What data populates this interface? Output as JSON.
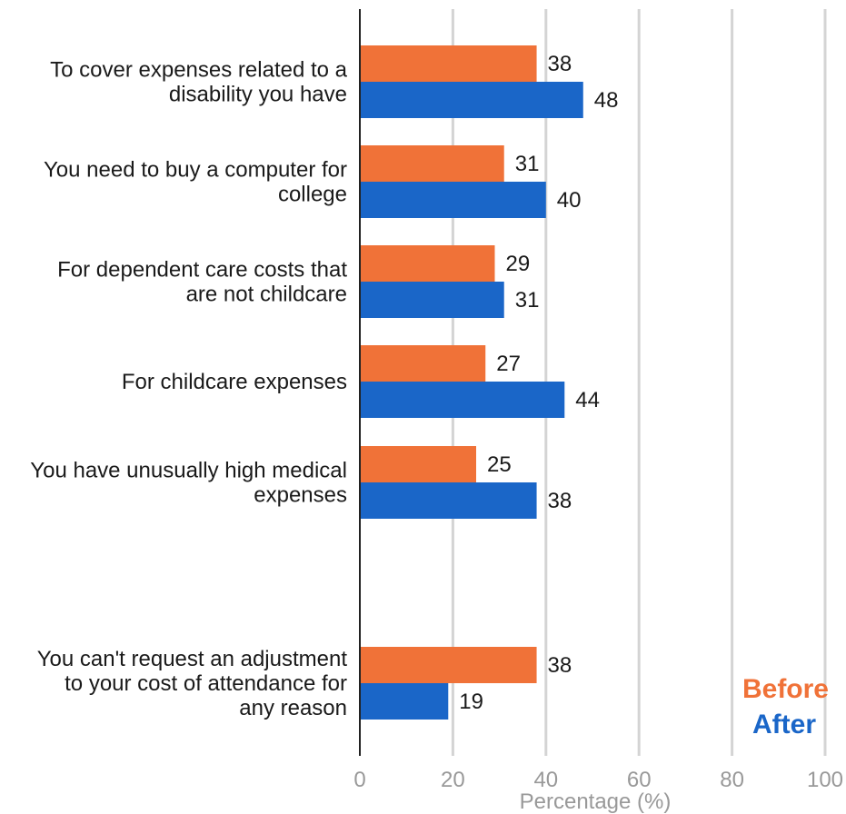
{
  "chart_data": {
    "type": "bar",
    "orientation": "horizontal",
    "xlabel": "Percentage (%)",
    "xlim": [
      0,
      100
    ],
    "xticks": [
      0,
      20,
      40,
      60,
      80,
      100
    ],
    "grid": true,
    "legend_position": "bottom-right",
    "categories": [
      [
        "To cover expenses related to a",
        "disability you have"
      ],
      [
        "You need to buy a computer for",
        "college"
      ],
      [
        "For dependent care costs that",
        "are not childcare"
      ],
      [
        "For childcare expenses"
      ],
      [
        "You have unusually high medical",
        "expenses"
      ],
      [
        "You can't request an adjustment",
        "to your cost of attendance for",
        "any reason"
      ]
    ],
    "series": [
      {
        "name": "Before",
        "color": "#f07238",
        "values": [
          38,
          31,
          29,
          27,
          25,
          38
        ]
      },
      {
        "name": "After",
        "color": "#1a66c8",
        "values": [
          48,
          40,
          31,
          44,
          38,
          19
        ]
      }
    ]
  }
}
